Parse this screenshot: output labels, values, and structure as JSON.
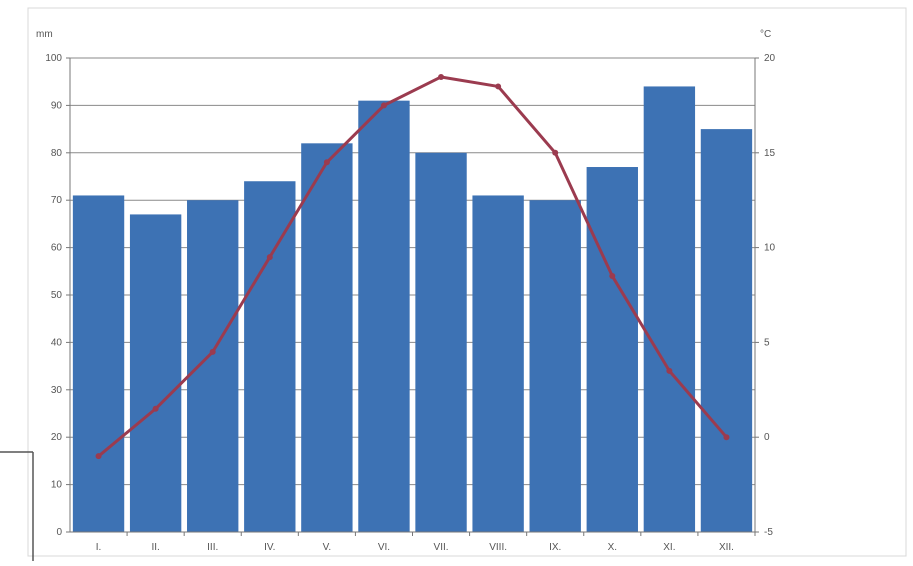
{
  "chart_data": {
    "type": "bar",
    "title": "",
    "xlabel": "",
    "categories": [
      "I.",
      "II.",
      "III.",
      "IV.",
      "V.",
      "VI.",
      "VII.",
      "VIII.",
      "IX.",
      "X.",
      "XI.",
      "XII."
    ],
    "series": [
      {
        "name": "",
        "type": "bar",
        "axis": "left",
        "color": "#3d72b4",
        "values": [
          71,
          67,
          70,
          74,
          82,
          91,
          80,
          71,
          70,
          77,
          94,
          85
        ]
      },
      {
        "name": "",
        "type": "line",
        "axis": "right",
        "color": "#9b3b4f",
        "values": [
          -1,
          1.5,
          4.5,
          9.5,
          14.5,
          17.5,
          19,
          18.5,
          15,
          8.5,
          3.5,
          0
        ]
      }
    ],
    "left_axis": {
      "unit_label": "mm",
      "ylim": [
        0,
        100
      ],
      "ticks": [
        "0",
        "10",
        "20",
        "30",
        "40",
        "50",
        "60",
        "70",
        "80",
        "90",
        "100"
      ]
    },
    "right_axis": {
      "unit_label": "°C",
      "ylim": [
        -5,
        20
      ],
      "ticks": [
        "-5",
        "0",
        "5",
        "10",
        "15",
        "20"
      ]
    },
    "grid": true,
    "legend": "none"
  }
}
